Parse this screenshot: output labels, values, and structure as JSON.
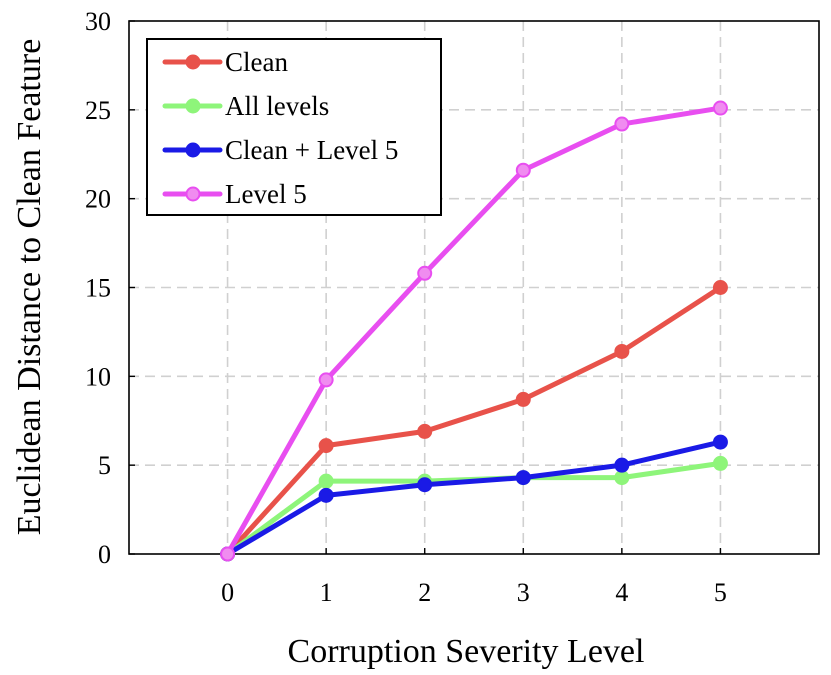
{
  "chart_data": {
    "type": "line",
    "xlabel": "Corruption Severity Level",
    "ylabel": "Euclidean Distance to Clean Feature",
    "x": [
      0,
      1,
      2,
      3,
      4,
      5
    ],
    "xlim": [
      -1,
      6
    ],
    "ylim": [
      0,
      30
    ],
    "xticks": [
      "0",
      "1",
      "2",
      "3",
      "4",
      "5"
    ],
    "yticks": [
      "0",
      "5",
      "10",
      "15",
      "20",
      "25",
      "30"
    ],
    "grid": true,
    "legend_position": "top-left",
    "series": [
      {
        "name": "Clean",
        "color": "#e8524a",
        "marker_color": "#e8524a",
        "values": [
          0,
          6.1,
          6.9,
          8.7,
          11.4,
          15.0
        ]
      },
      {
        "name": "All levels",
        "color": "#8ef57a",
        "marker_color": "#8ef57a",
        "values": [
          0,
          4.1,
          4.1,
          4.3,
          4.3,
          5.1
        ]
      },
      {
        "name": "Clean + Level 5",
        "color": "#1a1ae6",
        "marker_color": "#1a1ae6",
        "values": [
          0,
          3.3,
          3.9,
          4.3,
          5.0,
          6.3
        ]
      },
      {
        "name": "Level 5",
        "color": "#e84ef0",
        "marker_color": "#f08cf0",
        "values": [
          0,
          9.8,
          15.8,
          21.6,
          24.2,
          25.1
        ]
      }
    ]
  }
}
